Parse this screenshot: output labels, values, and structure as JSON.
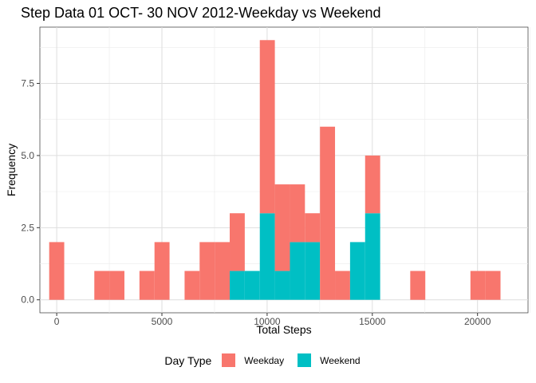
{
  "chart_data": {
    "type": "bar",
    "title": "Step Data 01 OCT- 30 NOV 2012-Weekday vs Weekend",
    "xlabel": "Total Steps",
    "ylabel": "Frequency",
    "x_ticks": [
      "0",
      "5000",
      "10000",
      "15000",
      "20000"
    ],
    "y_ticks": [
      "0.0",
      "2.5",
      "5.0",
      "7.5"
    ],
    "xlim": [
      -800,
      22400
    ],
    "ylim": [
      -0.45,
      9.45
    ],
    "bin_width": 715,
    "stacked": true,
    "grid": true,
    "legend": {
      "title": "Day Type",
      "placement": "bottom"
    },
    "bin_centers": [
      0,
      715,
      1430,
      2145,
      2860,
      3575,
      4290,
      5005,
      5720,
      6435,
      7150,
      7865,
      8580,
      9295,
      10010,
      10725,
      11440,
      12155,
      12870,
      13585,
      14300,
      15015,
      15730,
      16445,
      17160,
      17875,
      18590,
      19305,
      20020,
      20735,
      21450
    ],
    "series": [
      {
        "name": "Weekday",
        "color": "#F8766D",
        "values": [
          2,
          0,
          0,
          1,
          1,
          0,
          1,
          2,
          0,
          1,
          2,
          2,
          2,
          0,
          6,
          3,
          2,
          1,
          6,
          1,
          0,
          2,
          0,
          0,
          1,
          0,
          0,
          0,
          1,
          1,
          0
        ]
      },
      {
        "name": "Weekend",
        "color": "#00BFC4",
        "values": [
          0,
          0,
          0,
          0,
          0,
          0,
          0,
          0,
          0,
          0,
          0,
          0,
          1,
          1,
          3,
          1,
          2,
          2,
          0,
          0,
          2,
          3,
          0,
          0,
          0,
          0,
          0,
          0,
          0,
          0,
          0
        ]
      }
    ]
  }
}
